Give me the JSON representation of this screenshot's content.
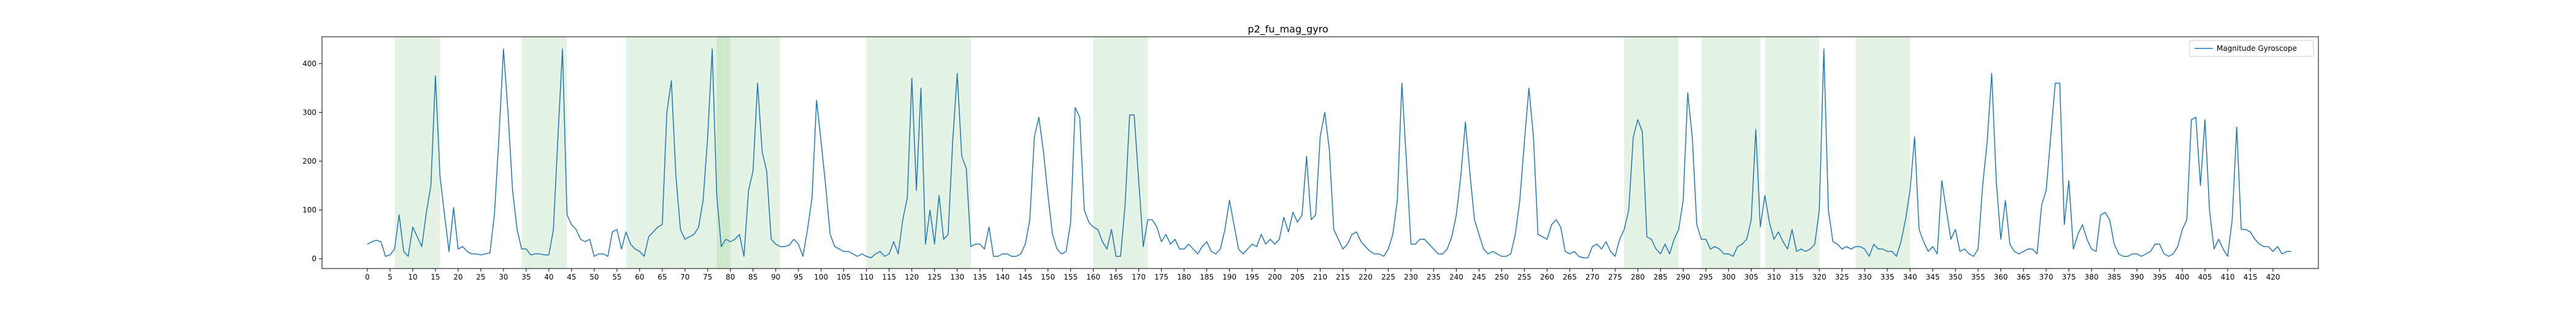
{
  "chart_data": {
    "type": "line",
    "title": "p2_fu_mag_gyro",
    "xlabel": "",
    "ylabel": "",
    "xlim": [
      -10,
      430
    ],
    "ylim": [
      -20,
      455
    ],
    "x_ticks": [
      0,
      5,
      10,
      15,
      20,
      25,
      30,
      35,
      40,
      45,
      50,
      55,
      60,
      65,
      70,
      75,
      80,
      85,
      90,
      95,
      100,
      105,
      110,
      115,
      120,
      125,
      130,
      135,
      140,
      145,
      150,
      155,
      160,
      165,
      170,
      175,
      180,
      185,
      190,
      195,
      200,
      205,
      210,
      215,
      220,
      225,
      230,
      235,
      240,
      245,
      250,
      255,
      260,
      265,
      270,
      275,
      280,
      285,
      290,
      295,
      300,
      305,
      310,
      315,
      320,
      325,
      330,
      335,
      340,
      345,
      350,
      355,
      360,
      365,
      370,
      375,
      380,
      385,
      390,
      395,
      400,
      405,
      410,
      415,
      420
    ],
    "y_ticks": [
      0,
      100,
      200,
      300,
      400
    ],
    "grid": false,
    "legend_position": "top-right",
    "colors": {
      "line": "#1f77b4",
      "span": "#2ca02c",
      "axes": "#000000"
    },
    "series": [
      {
        "name": "Magnitude Gyroscope",
        "x_start": 0,
        "x_step": 1,
        "values": [
          30,
          35,
          38,
          35,
          5,
          8,
          20,
          90,
          15,
          5,
          65,
          45,
          25,
          95,
          150,
          375,
          170,
          90,
          15,
          105,
          20,
          25,
          15,
          10,
          10,
          8,
          10,
          12,
          90,
          250,
          430,
          300,
          140,
          60,
          20,
          20,
          8,
          10,
          10,
          8,
          8,
          60,
          250,
          430,
          90,
          70,
          60,
          40,
          35,
          40,
          5,
          10,
          10,
          5,
          55,
          60,
          20,
          55,
          30,
          20,
          15,
          5,
          45,
          55,
          65,
          70,
          300,
          365,
          170,
          60,
          40,
          45,
          50,
          65,
          120,
          250,
          430,
          130,
          25,
          40,
          35,
          40,
          50,
          5,
          140,
          180,
          360,
          220,
          180,
          40,
          30,
          25,
          25,
          28,
          40,
          30,
          5,
          60,
          125,
          325,
          240,
          150,
          50,
          25,
          20,
          15,
          15,
          10,
          5,
          10,
          5,
          2,
          10,
          15,
          5,
          10,
          35,
          10,
          80,
          125,
          370,
          140,
          350,
          30,
          100,
          30,
          130,
          40,
          50,
          240,
          380,
          210,
          185,
          25,
          30,
          30,
          20,
          65,
          5,
          5,
          10,
          10,
          5,
          5,
          10,
          30,
          80,
          250,
          290,
          220,
          130,
          50,
          20,
          10,
          15,
          75,
          310,
          290,
          100,
          75,
          65,
          60,
          35,
          20,
          60,
          5,
          5,
          110,
          295,
          295,
          160,
          25,
          80,
          80,
          65,
          35,
          50,
          30,
          40,
          20,
          20,
          30,
          20,
          10,
          25,
          35,
          15,
          10,
          20,
          60,
          120,
          70,
          20,
          10,
          20,
          30,
          25,
          50,
          30,
          40,
          30,
          40,
          85,
          55,
          95,
          75,
          90,
          210,
          80,
          90,
          250,
          300,
          225,
          60,
          40,
          20,
          30,
          50,
          55,
          35,
          25,
          15,
          10,
          10,
          5,
          20,
          50,
          120,
          360,
          200,
          30,
          30,
          40,
          40,
          30,
          20,
          10,
          10,
          20,
          45,
          90,
          170,
          280,
          175,
          80,
          50,
          20,
          10,
          15,
          10,
          5,
          5,
          10,
          50,
          120,
          240,
          350,
          250,
          50,
          45,
          40,
          70,
          80,
          65,
          15,
          10,
          15,
          5,
          2,
          2,
          25,
          30,
          20,
          35,
          15,
          5,
          40,
          60,
          100,
          250,
          285,
          260,
          45,
          40,
          20,
          10,
          30,
          10,
          40,
          60,
          120,
          340,
          250,
          70,
          40,
          40,
          20,
          25,
          20,
          10,
          10,
          5,
          25,
          30,
          40,
          80,
          265,
          65,
          130,
          75,
          40,
          55,
          35,
          20,
          60,
          15,
          20,
          15,
          20,
          30,
          100,
          430,
          100,
          35,
          30,
          20,
          25,
          20,
          25,
          25,
          20,
          5,
          30,
          20,
          20,
          15,
          15,
          5,
          35,
          80,
          140,
          250,
          60,
          35,
          15,
          25,
          10,
          160,
          100,
          40,
          60,
          15,
          20,
          10,
          5,
          20,
          150,
          240,
          380,
          160,
          40,
          120,
          30,
          15,
          10,
          15,
          20,
          20,
          10,
          110,
          140,
          250,
          360,
          360,
          70,
          160,
          20,
          50,
          70,
          40,
          20,
          15,
          90,
          95,
          80,
          30,
          10,
          5,
          5,
          10,
          10,
          5,
          10,
          15,
          30,
          30,
          10,
          5,
          10,
          25,
          60,
          80,
          285,
          290,
          150,
          285,
          100,
          20,
          40,
          20,
          5,
          80,
          270,
          60,
          60,
          55,
          40,
          30,
          25,
          25,
          15,
          25,
          10,
          15,
          15
        ]
      }
    ],
    "highlight_spans": [
      [
        6,
        16
      ],
      [
        34,
        44
      ],
      [
        57,
        67
      ],
      [
        67,
        80
      ],
      [
        77,
        80
      ],
      [
        80,
        91
      ],
      [
        110,
        120
      ],
      [
        120,
        123
      ],
      [
        123,
        133
      ],
      [
        160,
        172
      ],
      [
        277,
        289
      ],
      [
        294,
        307
      ],
      [
        308,
        317
      ],
      [
        317,
        320
      ],
      [
        328,
        340
      ]
    ]
  }
}
